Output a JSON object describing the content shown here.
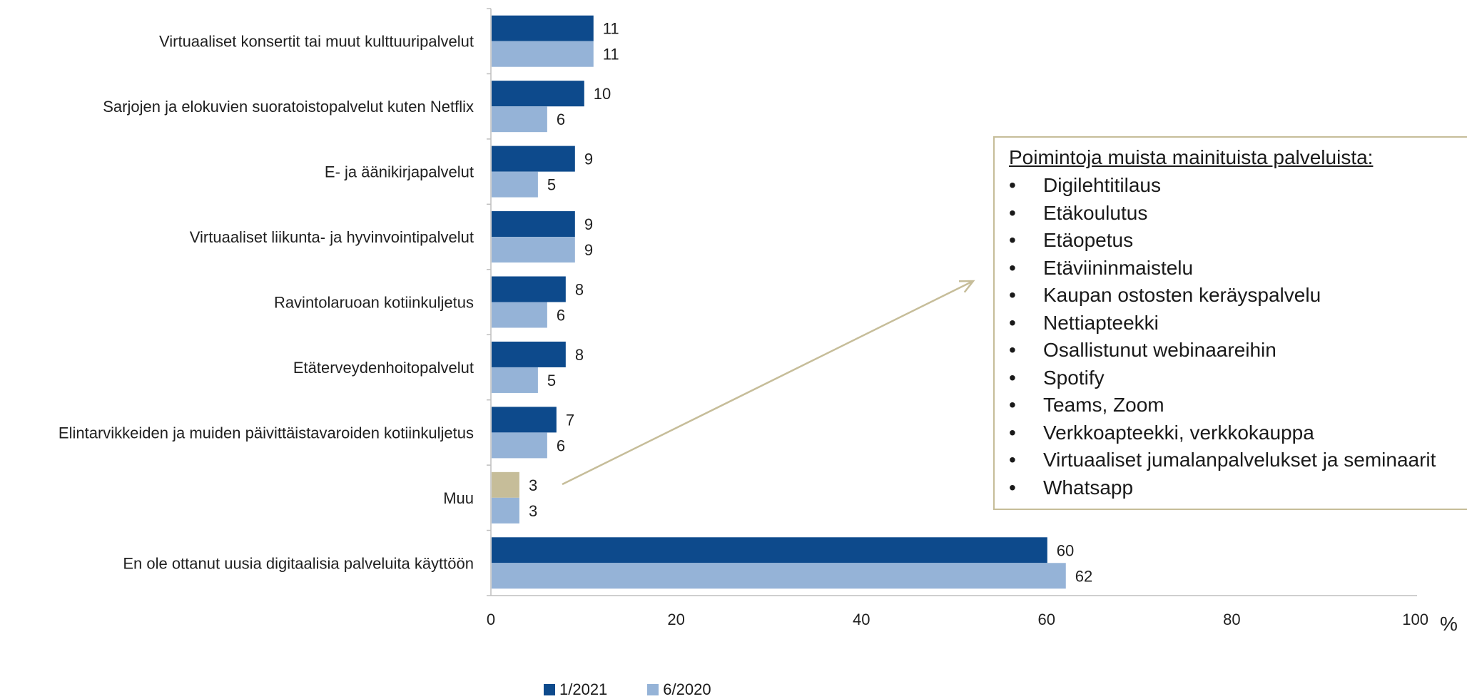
{
  "colors": {
    "series_2021": "#0d4a8c",
    "series_2020": "#95b3d7",
    "highlight": "#c6bd99",
    "axis": "#bfbfbf"
  },
  "chart_data": {
    "type": "bar",
    "orientation": "horizontal",
    "categories": [
      "Virtuaaliset konsertit tai muut kulttuuripalvelut",
      "Sarjojen ja elokuvien suoratoistopalvelut kuten Netflix",
      "E- ja äänikirjapalvelut",
      "Virtuaaliset liikunta- ja hyvinvointipalvelut",
      "Ravintolaruoan kotiinkuljetus",
      "Etäterveydenhoitopalvelut",
      "Elintarvikkeiden ja muiden päivittäistavaroiden kotiinkuljetus",
      "Muu",
      "En ole ottanut uusia digitaalisia palveluita käyttöön"
    ],
    "series": [
      {
        "name": "1/2021",
        "values": [
          11,
          10,
          9,
          9,
          8,
          8,
          7,
          3,
          60
        ]
      },
      {
        "name": "6/2020",
        "values": [
          11,
          6,
          5,
          9,
          6,
          5,
          6,
          3,
          62
        ]
      }
    ],
    "xlim": [
      0,
      100
    ],
    "xticks": [
      0,
      20,
      40,
      60,
      80,
      100
    ],
    "unit": "%",
    "highlighted_bar": {
      "series": "1/2021",
      "category": "Muu"
    },
    "grid": false,
    "legend_position": "bottom"
  },
  "note": {
    "title": "Poimintoja muista mainituista palveluista:",
    "items": [
      "Digilehtitilaus",
      "Etäkoulutus",
      "Etäopetus",
      "Etäviininmaistelu",
      "Kaupan ostosten keräyspalvelu",
      "Nettiapteekki",
      "Osallistunut webinaareihin",
      "Spotify",
      "Teams, Zoom",
      "Verkkoapteekki, verkkokauppa",
      "Virtuaaliset jumalanpalvelukset ja seminaarit",
      "Whatsapp"
    ]
  },
  "legend": [
    {
      "label": "1/2021"
    },
    {
      "label": "6/2020"
    }
  ]
}
